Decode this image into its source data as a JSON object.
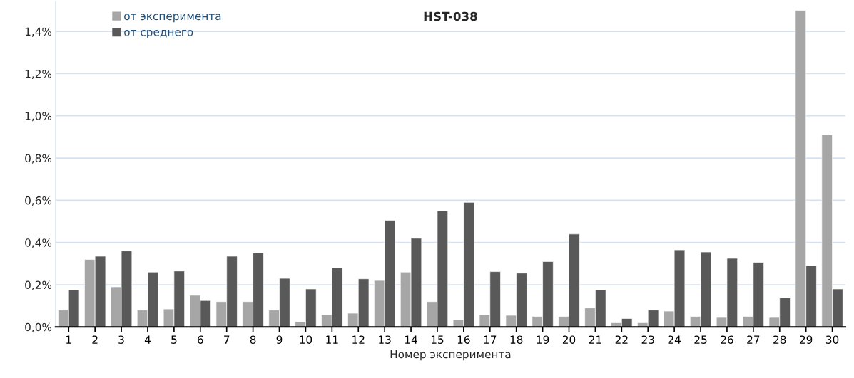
{
  "chart_data": {
    "type": "bar",
    "title": "HST-038",
    "xlabel": "Номер эксперимента",
    "categories": [
      "1",
      "2",
      "3",
      "4",
      "5",
      "6",
      "7",
      "8",
      "9",
      "10",
      "11",
      "12",
      "13",
      "14",
      "15",
      "16",
      "17",
      "18",
      "19",
      "20",
      "21",
      "22",
      "23",
      "24",
      "25",
      "26",
      "27",
      "28",
      "29",
      "30"
    ],
    "series": [
      {
        "name": "от эксперимента",
        "color": "#a6a6a6",
        "values": [
          0.08,
          0.32,
          0.19,
          0.08,
          0.085,
          0.15,
          0.12,
          0.12,
          0.08,
          0.025,
          0.058,
          0.065,
          0.22,
          0.26,
          0.12,
          0.035,
          0.058,
          0.055,
          0.05,
          0.05,
          0.09,
          0.02,
          0.02,
          0.075,
          0.05,
          0.045,
          0.05,
          0.045,
          1.5,
          0.91
        ]
      },
      {
        "name": "от среднего",
        "color": "#595959",
        "values": [
          0.175,
          0.335,
          0.36,
          0.26,
          0.265,
          0.125,
          0.335,
          0.35,
          0.23,
          0.18,
          0.28,
          0.228,
          0.505,
          0.42,
          0.55,
          0.59,
          0.262,
          0.255,
          0.31,
          0.44,
          0.175,
          0.04,
          0.08,
          0.365,
          0.355,
          0.325,
          0.305,
          0.138,
          0.29,
          0.18
        ]
      }
    ],
    "ylim": [
      0,
      1.54
    ],
    "yticks": [
      {
        "value": 0,
        "label": "0,0%"
      },
      {
        "value": 0.2,
        "label": "0,2%"
      },
      {
        "value": 0.4,
        "label": "0,4%"
      },
      {
        "value": 0.6,
        "label": "0,6%"
      },
      {
        "value": 0.8,
        "label": "0,8%"
      },
      {
        "value": 1.0,
        "label": "1,0%"
      },
      {
        "value": 1.2,
        "label": "1,2%"
      },
      {
        "value": 1.4,
        "label": "1,4%"
      }
    ],
    "grid": "y",
    "legend": "top left"
  }
}
